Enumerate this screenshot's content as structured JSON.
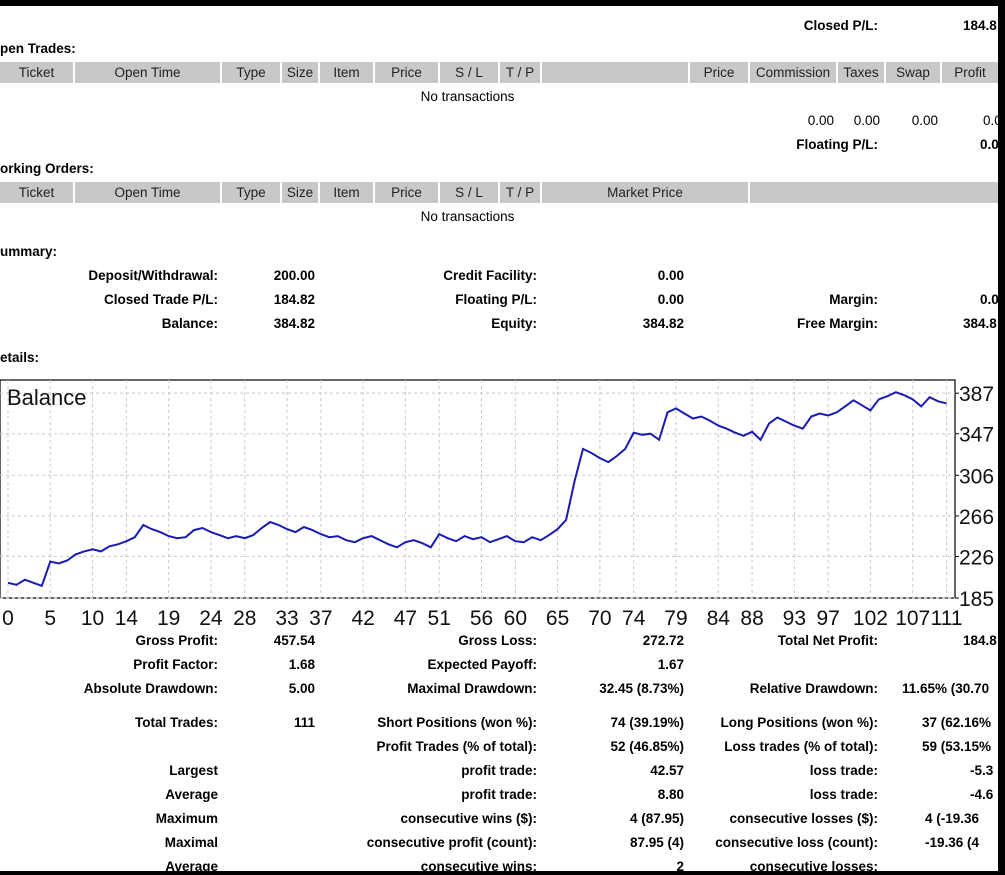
{
  "top": {
    "closed_pl_label": "Closed P/L:",
    "closed_pl_value": "184.8"
  },
  "open_trades": {
    "title": "pen Trades:",
    "columns": [
      "Ticket",
      "Open Time",
      "Type",
      "Size",
      "Item",
      "Price",
      "S / L",
      "T / P",
      "",
      "Price",
      "Commission",
      "Taxes",
      "Swap",
      "Profit"
    ],
    "empty": "No transactions",
    "totals": [
      "0.00",
      "0.00",
      "0.00",
      "0.0"
    ],
    "floating_label": "Floating P/L:",
    "floating_value": "0.0"
  },
  "working_orders": {
    "title": "orking Orders:",
    "columns": [
      "Ticket",
      "Open Time",
      "Type",
      "Size",
      "Item",
      "Price",
      "S / L",
      "T / P",
      "Market Price",
      ""
    ],
    "empty": "No transactions"
  },
  "summary": {
    "title": "ummary:",
    "deposit_label": "Deposit/Withdrawal:",
    "deposit_value": "200.00",
    "closed_label": "Closed Trade P/L:",
    "closed_value": "184.82",
    "balance_label": "Balance:",
    "balance_value": "384.82",
    "credit_label": "Credit Facility:",
    "credit_value": "0.00",
    "floating_label": "Floating P/L:",
    "floating_value": "0.00",
    "equity_label": "Equity:",
    "equity_value": "384.82",
    "margin_label": "Margin:",
    "margin_value": "0.0",
    "free_margin_label": "Free Margin:",
    "free_margin_value": "384.8"
  },
  "details": {
    "title": "etails:"
  },
  "chart_data": {
    "type": "line",
    "title": "Balance",
    "y_ticks": [
      "387",
      "347",
      "306",
      "266",
      "226",
      "185"
    ],
    "y_tick_values": [
      387,
      347,
      306,
      266,
      226,
      185
    ],
    "x_ticks": [
      "0",
      "5",
      "10",
      "14",
      "19",
      "24",
      "28",
      "33",
      "37",
      "42",
      "47",
      "51",
      "56",
      "60",
      "65",
      "70",
      "74",
      "79",
      "84",
      "88",
      "93",
      "97",
      "102",
      "107",
      "111"
    ],
    "x_tick_values": [
      0,
      5,
      10,
      14,
      19,
      24,
      28,
      33,
      37,
      42,
      47,
      51,
      56,
      60,
      65,
      70,
      74,
      79,
      84,
      88,
      93,
      97,
      102,
      107,
      111
    ],
    "ylim": [
      185,
      400
    ],
    "xlim": [
      0,
      112
    ],
    "line_color": "#1a1ab4",
    "series": [
      {
        "x": [
          0,
          1,
          2,
          3,
          4,
          5,
          6,
          7,
          8,
          9,
          10,
          11,
          12,
          13,
          14,
          15,
          16,
          17,
          18,
          19,
          20,
          21,
          22,
          23,
          24,
          25,
          26,
          27,
          28,
          29,
          30,
          31,
          32,
          33,
          34,
          35,
          36,
          37,
          38,
          39,
          40,
          41,
          42,
          43,
          44,
          45,
          46,
          47,
          48,
          49,
          50,
          51,
          52,
          53,
          54,
          55,
          56,
          57,
          58,
          59,
          60,
          61,
          62,
          63,
          64,
          65,
          66,
          67,
          68,
          69,
          70,
          71,
          72,
          73,
          74,
          75,
          76,
          77,
          78,
          79,
          80,
          81,
          82,
          83,
          84,
          85,
          86,
          87,
          88,
          89,
          90,
          91,
          92,
          93,
          94,
          95,
          96,
          97,
          98,
          99,
          100,
          101,
          102,
          103,
          104,
          105,
          106,
          107,
          108,
          109,
          110,
          111
        ],
        "y": [
          200,
          198,
          203,
          200,
          197,
          221,
          219,
          222,
          228,
          231,
          233,
          231,
          236,
          238,
          241,
          245,
          257,
          253,
          250,
          246,
          244,
          245,
          252,
          254,
          250,
          247,
          244,
          246,
          244,
          247,
          254,
          260,
          257,
          253,
          250,
          255,
          252,
          248,
          245,
          246,
          242,
          240,
          244,
          246,
          242,
          238,
          235,
          240,
          242,
          239,
          235,
          248,
          244,
          241,
          246,
          243,
          245,
          240,
          243,
          246,
          241,
          240,
          245,
          242,
          247,
          253,
          262,
          300,
          332,
          328,
          323,
          319,
          325,
          332,
          348,
          346,
          347,
          341,
          368,
          372,
          367,
          362,
          364,
          360,
          355,
          352,
          348,
          345,
          349,
          341,
          357,
          363,
          359,
          355,
          352,
          364,
          367,
          365,
          368,
          374,
          380,
          375,
          370,
          381,
          384,
          388,
          385,
          381,
          374,
          383,
          379,
          377
        ]
      }
    ]
  },
  "stats": {
    "gross_profit_label": "Gross Profit:",
    "gross_profit_value": "457.54",
    "gross_loss_label": "Gross Loss:",
    "gross_loss_value": "272.72",
    "total_net_label": "Total Net Profit:",
    "total_net_value": "184.8",
    "profit_factor_label": "Profit Factor:",
    "profit_factor_value": "1.68",
    "expected_payoff_label": "Expected Payoff:",
    "expected_payoff_value": "1.67",
    "abs_dd_label": "Absolute Drawdown:",
    "abs_dd_value": "5.00",
    "max_dd_label": "Maximal Drawdown:",
    "max_dd_value": "32.45 (8.73%)",
    "rel_dd_label": "Relative Drawdown:",
    "rel_dd_value": "11.65% (30.70",
    "total_trades_label": "Total Trades:",
    "total_trades_value": "111",
    "short_label": "Short Positions (won %):",
    "short_value": "74 (39.19%)",
    "long_label": "Long Positions (won %):",
    "long_value": "37 (62.16%",
    "profit_trades_label": "Profit Trades (% of total):",
    "profit_trades_value": "52 (46.85%)",
    "loss_trades_label": "Loss trades (% of total):",
    "loss_trades_value": "59 (53.15%",
    "largest_label": "Largest",
    "largest_profit_label": "profit trade:",
    "largest_profit_value": "42.57",
    "largest_loss_label": "loss trade:",
    "largest_loss_value": "-5.3",
    "average_label": "Average",
    "average_profit_label": "profit trade:",
    "average_profit_value": "8.80",
    "average_loss_label": "loss trade:",
    "average_loss_value": "-4.6",
    "maximum_label": "Maximum",
    "max_wins_label": "consecutive wins ($):",
    "max_wins_value": "4 (87.95)",
    "max_losses_label": "consecutive losses ($):",
    "max_losses_value": "4 (-19.36",
    "maximal_label": "Maximal",
    "maximal_profit_label": "consecutive profit (count):",
    "maximal_profit_value": "87.95 (4)",
    "maximal_loss_label": "consecutive loss (count):",
    "maximal_loss_value": "-19.36 (4",
    "average2_label": "Average",
    "avg_wins_label": "consecutive wins:",
    "avg_wins_value": "2",
    "avg_losses_label": "consecutive losses:"
  }
}
